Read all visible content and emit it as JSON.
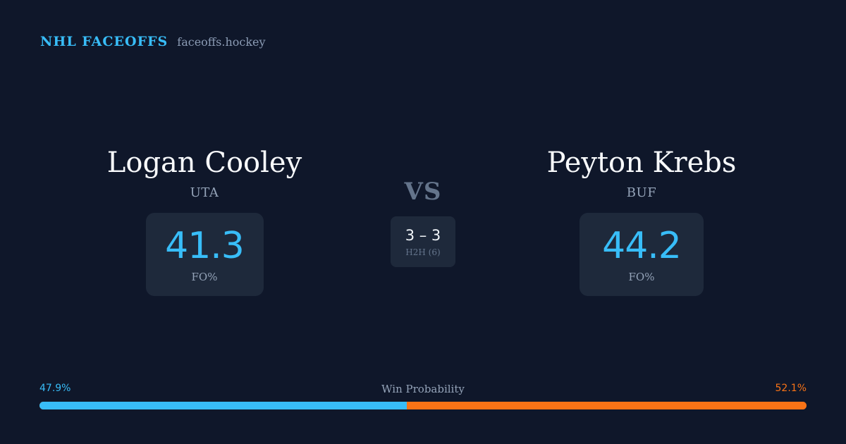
{
  "header": {
    "brand": "NHL FACEOFFS",
    "site": "faceoffs.hockey"
  },
  "player_left": {
    "name": "Logan Cooley",
    "team": "UTA",
    "stat_value": "41.3",
    "stat_label": "FO%"
  },
  "player_right": {
    "name": "Peyton Krebs",
    "team": "BUF",
    "stat_value": "44.2",
    "stat_label": "FO%"
  },
  "matchup": {
    "vs": "VS",
    "h2h_score": "3 – 3",
    "h2h_label": "H2H (6)"
  },
  "win_probability": {
    "title": "Win Probability",
    "left_label": "47.9%",
    "right_label": "52.1%",
    "left_value": 47.9,
    "right_value": 52.1,
    "left_color": "#38bdf8",
    "right_color": "#f97316"
  }
}
